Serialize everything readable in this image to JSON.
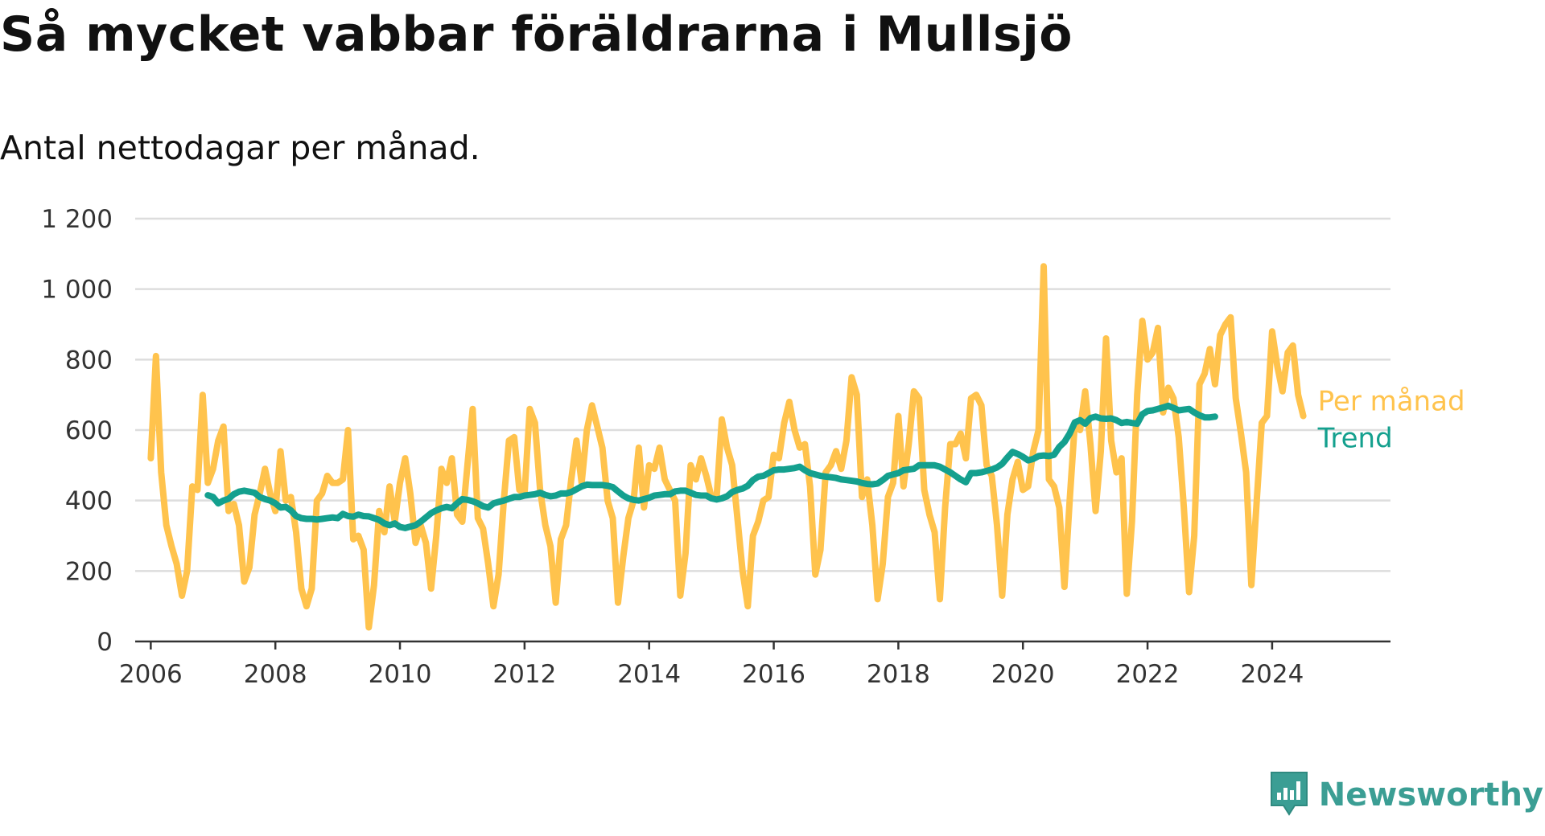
{
  "title": "Så mycket vabbar föräldrarna i Mullsjö",
  "subtitle": "Antal nettodagar per månad.",
  "brand": {
    "name": "Newsworthy",
    "color": "#3b9e94",
    "icon": "newsworthy-logo-icon"
  },
  "colors": {
    "monthly": "#ffc34d",
    "trend": "#14a08e",
    "grid": "#dddddd",
    "axis": "#333333"
  },
  "chart_data": {
    "type": "line",
    "title": "Så mycket vabbar föräldrarna i Mullsjö",
    "subtitle": "Antal nettodagar per månad.",
    "xlabel": "",
    "ylabel": "",
    "xlim": [
      2005.75,
      2025.9
    ],
    "ylim": [
      0,
      1200
    ],
    "y_ticks": [
      0,
      200,
      400,
      600,
      800,
      1000,
      1200
    ],
    "y_tick_labels": [
      "0",
      "200",
      "400",
      "600",
      "800",
      "1 000",
      "1 200"
    ],
    "x_ticks": [
      2006,
      2008,
      2010,
      2012,
      2014,
      2016,
      2018,
      2020,
      2022,
      2024
    ],
    "x_tick_labels": [
      "2006",
      "2008",
      "2010",
      "2012",
      "2014",
      "2016",
      "2018",
      "2020",
      "2022",
      "2024"
    ],
    "grid": "horizontal",
    "legend": "inline labels at right end of lines",
    "series": [
      {
        "name": "Per månad",
        "start_year": 2006,
        "start_month": 1,
        "values": [
          520,
          810,
          480,
          330,
          270,
          220,
          130,
          200,
          440,
          430,
          700,
          450,
          490,
          570,
          610,
          370,
          390,
          330,
          170,
          210,
          360,
          420,
          490,
          420,
          370,
          540,
          400,
          410,
          310,
          150,
          100,
          150,
          400,
          420,
          470,
          450,
          450,
          460,
          600,
          290,
          300,
          260,
          40,
          160,
          370,
          310,
          440,
          340,
          450,
          520,
          420,
          280,
          330,
          280,
          150,
          300,
          490,
          450,
          520,
          360,
          340,
          500,
          660,
          350,
          320,
          220,
          100,
          190,
          400,
          570,
          580,
          430,
          420,
          660,
          620,
          430,
          330,
          270,
          110,
          290,
          330,
          460,
          570,
          450,
          600,
          670,
          610,
          550,
          400,
          350,
          110,
          240,
          350,
          400,
          550,
          380,
          500,
          490,
          550,
          460,
          430,
          400,
          130,
          250,
          500,
          460,
          520,
          470,
          410,
          410,
          630,
          550,
          500,
          350,
          200,
          100,
          300,
          340,
          400,
          410,
          530,
          520,
          620,
          680,
          600,
          550,
          560,
          440,
          190,
          260,
          480,
          500,
          540,
          490,
          570,
          750,
          700,
          410,
          460,
          330,
          120,
          220,
          410,
          450,
          640,
          440,
          560,
          710,
          690,
          430,
          360,
          310,
          120,
          380,
          560,
          560,
          590,
          520,
          690,
          700,
          670,
          500,
          470,
          330,
          130,
          360,
          460,
          510,
          430,
          440,
          540,
          600,
          1065,
          460,
          440,
          380,
          155,
          400,
          620,
          600,
          710,
          560,
          370,
          540,
          860,
          570,
          480,
          520,
          135,
          340,
          700,
          910,
          800,
          820,
          890,
          650,
          720,
          690,
          580,
          380,
          140,
          300,
          730,
          760,
          830,
          730,
          870,
          900,
          920,
          690,
          590,
          480,
          160,
          390,
          620,
          640,
          880,
          780,
          710,
          820,
          840,
          700,
          640
        ]
      },
      {
        "name": "Trend",
        "start_year": 2006,
        "start_month": 12,
        "values": [
          415,
          410,
          392,
          400,
          405,
          418,
          425,
          428,
          425,
          422,
          410,
          404,
          400,
          392,
          380,
          382,
          372,
          356,
          350,
          348,
          348,
          346,
          348,
          350,
          352,
          350,
          362,
          356,
          354,
          360,
          356,
          355,
          350,
          345,
          335,
          330,
          335,
          325,
          322,
          326,
          330,
          340,
          352,
          364,
          372,
          378,
          382,
          378,
          392,
          404,
          402,
          398,
          392,
          384,
          380,
          392,
          396,
          400,
          405,
          410,
          410,
          414,
          416,
          418,
          422,
          416,
          412,
          414,
          420,
          420,
          424,
          432,
          440,
          445,
          444,
          444,
          444,
          442,
          438,
          426,
          414,
          406,
          402,
          400,
          404,
          408,
          414,
          416,
          418,
          418,
          426,
          428,
          428,
          422,
          416,
          414,
          414,
          406,
          403,
          406,
          412,
          424,
          430,
          434,
          442,
          458,
          468,
          470,
          478,
          486,
          488,
          488,
          490,
          492,
          496,
          486,
          478,
          474,
          470,
          468,
          466,
          464,
          460,
          458,
          456,
          454,
          450,
          447,
          446,
          448,
          458,
          470,
          474,
          478,
          486,
          488,
          490,
          500,
          500,
          500,
          500,
          496,
          488,
          480,
          470,
          460,
          452,
          478,
          478,
          480,
          484,
          488,
          494,
          504,
          522,
          538,
          532,
          524,
          514,
          518,
          526,
          528,
          526,
          530,
          552,
          566,
          590,
          622,
          628,
          618,
          634,
          638,
          633,
          632,
          633,
          628,
          620,
          623,
          620,
          618,
          645,
          654,
          656,
          660,
          664,
          669,
          663,
          656,
          658,
          660,
          650,
          642,
          636,
          636,
          638
        ]
      }
    ]
  }
}
